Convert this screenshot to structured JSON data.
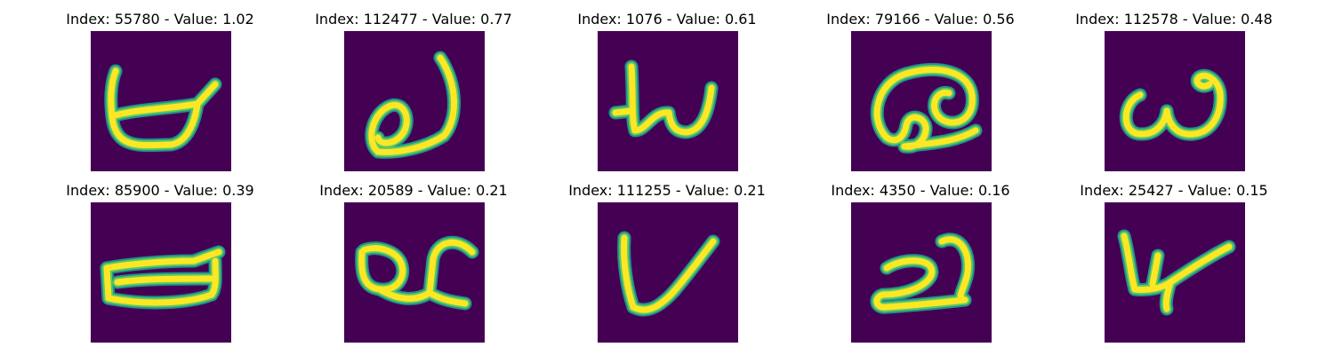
{
  "colors": {
    "background": "#440154",
    "stroke_core": "#fde725",
    "stroke_mid": "#5ec962",
    "stroke_edge": "#21918c"
  },
  "panels": [
    {
      "title": "Index: 55780 - Value: 1.02",
      "index": 55780,
      "value": 1.02,
      "glyph": "bowl-with-stem"
    },
    {
      "title": "Index: 112477 - Value: 0.77",
      "index": 112477,
      "value": 0.77,
      "glyph": "loop-with-tall-stroke"
    },
    {
      "title": "Index: 1076 - Value: 0.61",
      "index": 1076,
      "value": 0.61,
      "glyph": "w-shape"
    },
    {
      "title": "Index: 79166 - Value: 0.56",
      "index": 79166,
      "value": 0.56,
      "glyph": "double-loop"
    },
    {
      "title": "Index: 112578 - Value: 0.48",
      "index": 112578,
      "value": 0.48,
      "glyph": "omega-shape"
    },
    {
      "title": "Index: 85900 - Value: 0.39",
      "index": 85900,
      "value": 0.39,
      "glyph": "flat-bowl"
    },
    {
      "title": "Index: 20589 - Value: 0.21",
      "index": 20589,
      "value": 0.21,
      "glyph": "loop-with-hook"
    },
    {
      "title": "Index: 111255 - Value: 0.21",
      "index": 111255,
      "value": 0.21,
      "glyph": "v-shape"
    },
    {
      "title": "Index: 4350 - Value: 0.16",
      "index": 4350,
      "value": 0.16,
      "glyph": "curled-z"
    },
    {
      "title": "Index: 25427 - Value: 0.15",
      "index": 25427,
      "value": 0.15,
      "glyph": "open-hook"
    }
  ]
}
